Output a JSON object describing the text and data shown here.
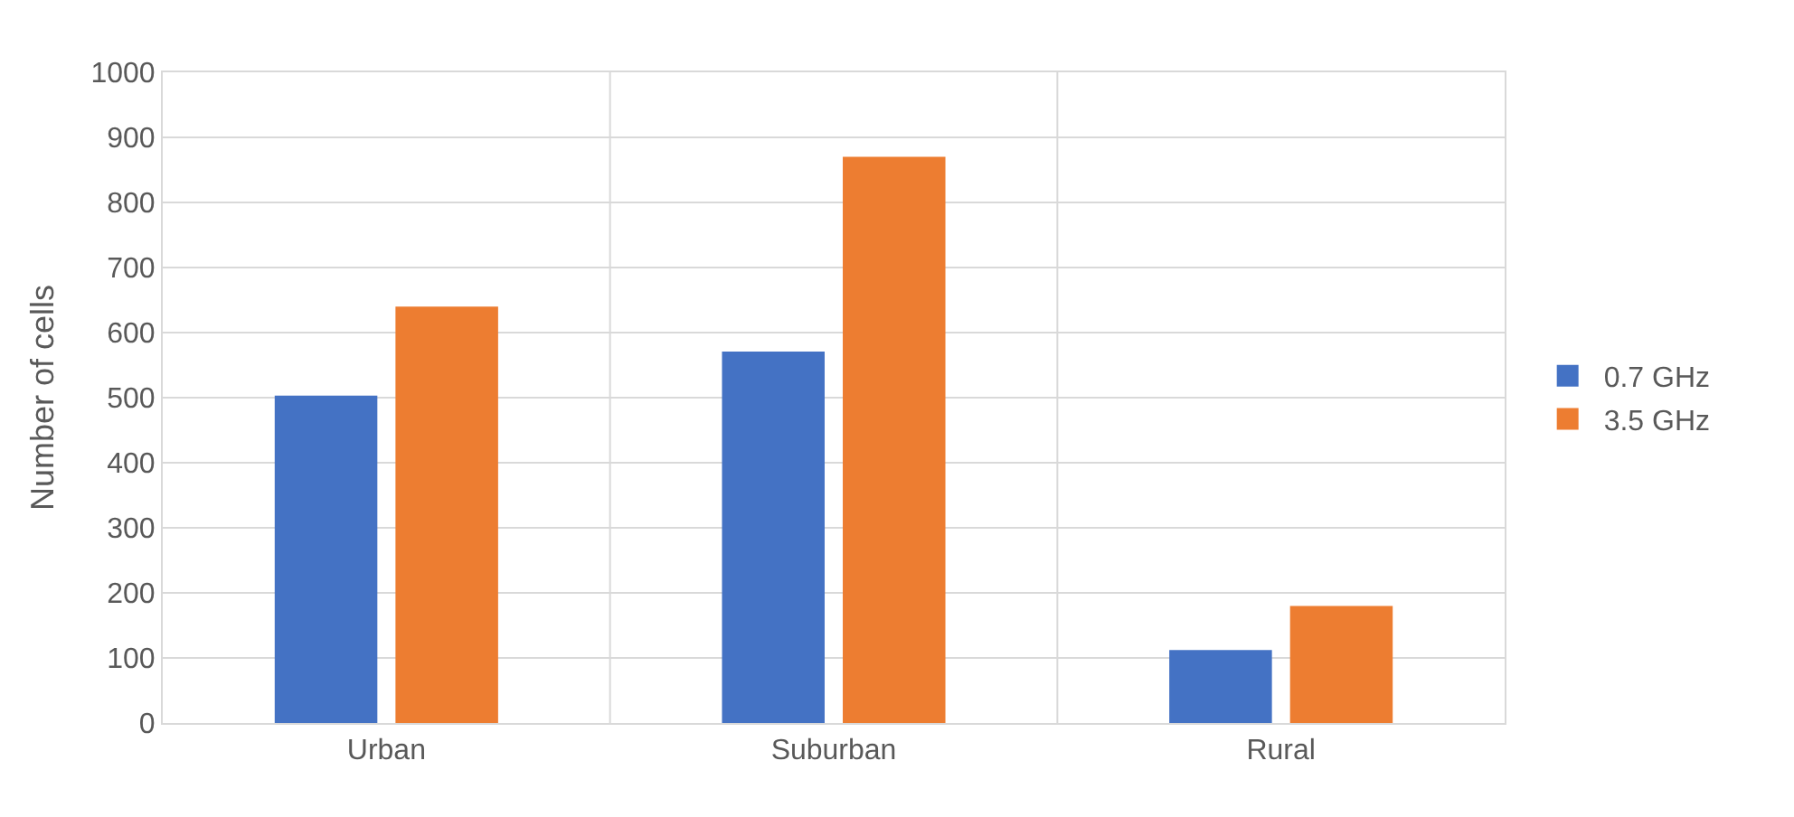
{
  "chart_data": {
    "type": "bar",
    "ylabel": "Number of cells",
    "categories": [
      "Urban",
      "Suburban",
      "Rural"
    ],
    "series": [
      {
        "name": "0.7 GHz",
        "color": "#4472c4",
        "values": [
          503,
          571,
          112
        ]
      },
      {
        "name": "3.5 GHz",
        "color": "#ed7d31",
        "values": [
          640,
          870,
          180
        ]
      }
    ],
    "ylim": [
      0,
      1000
    ],
    "yticks": [
      0,
      100,
      200,
      300,
      400,
      500,
      600,
      700,
      800,
      900,
      1000
    ],
    "grid": true,
    "legend": "right"
  }
}
